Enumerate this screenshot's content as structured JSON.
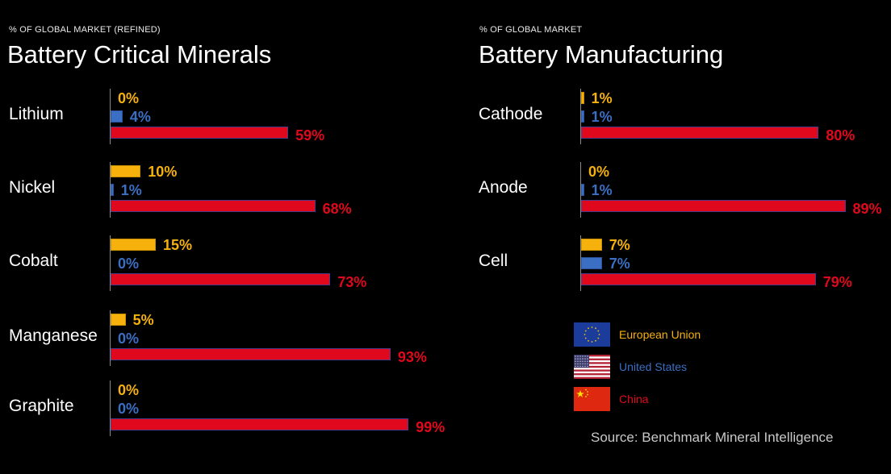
{
  "colors": {
    "eu": "#f6b10c",
    "us": "#3b6fc4",
    "cn": "#e0081c",
    "background": "#000000"
  },
  "legend": [
    {
      "key": "eu",
      "label": "European Union",
      "icon": "eu-flag-icon"
    },
    {
      "key": "us",
      "label": "United States",
      "icon": "us-flag-icon"
    },
    {
      "key": "cn",
      "label": "China",
      "icon": "china-flag-icon"
    }
  ],
  "source": "Source: Benchmark Mineral Intelligence",
  "chart_data": [
    {
      "type": "bar",
      "orientation": "horizontal",
      "subtitle": "% OF GLOBAL MARKET (REFINED)",
      "title": "Battery Critical Minerals",
      "categories": [
        "Lithium",
        "Nickel",
        "Cobalt",
        "Manganese",
        "Graphite"
      ],
      "series": [
        {
          "key": "eu",
          "name": "European Union",
          "values": [
            0,
            10,
            15,
            5,
            0
          ],
          "labels": [
            "0%",
            "10%",
            "15%",
            "5%",
            "0%"
          ]
        },
        {
          "key": "us",
          "name": "United States",
          "values": [
            4,
            1,
            0,
            0,
            0
          ],
          "labels": [
            "4%",
            "1%",
            "0%",
            "0%",
            "0%"
          ]
        },
        {
          "key": "cn",
          "name": "China",
          "values": [
            59,
            68,
            73,
            93,
            99
          ],
          "labels": [
            "59%",
            "68%",
            "73%",
            "93%",
            "99%"
          ]
        }
      ],
      "xlim": [
        0,
        100
      ],
      "grid": false,
      "legend_position": "bottom-right"
    },
    {
      "type": "bar",
      "orientation": "horizontal",
      "subtitle": "% OF GLOBAL MARKET",
      "title": "Battery Manufacturing",
      "categories": [
        "Cathode",
        "Anode",
        "Cell"
      ],
      "series": [
        {
          "key": "eu",
          "name": "European Union",
          "values": [
            1,
            0,
            7
          ],
          "labels": [
            "1%",
            "0%",
            "7%"
          ]
        },
        {
          "key": "us",
          "name": "United States",
          "values": [
            1,
            1,
            7
          ],
          "labels": [
            "1%",
            "1%",
            "7%"
          ]
        },
        {
          "key": "cn",
          "name": "China",
          "values": [
            80,
            89,
            79
          ],
          "labels": [
            "80%",
            "89%",
            "79%"
          ]
        }
      ],
      "xlim": [
        0,
        100
      ],
      "grid": false,
      "legend_position": "bottom-right"
    }
  ]
}
